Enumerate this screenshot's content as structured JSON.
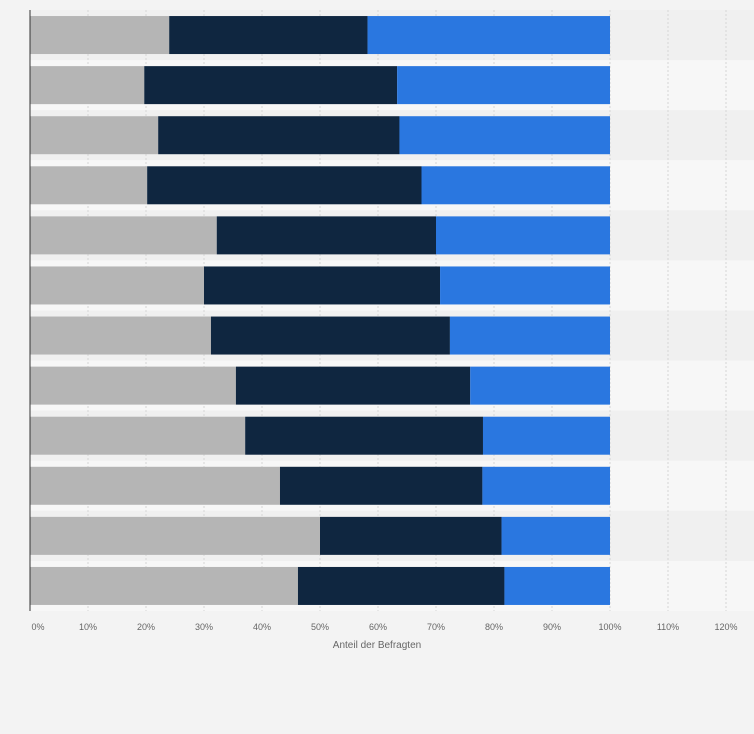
{
  "chart_data": {
    "type": "bar",
    "orientation": "horizontal",
    "stacked": true,
    "xlabel": "Anteil der Befragten",
    "xlim": [
      0,
      120
    ],
    "x_ticks": [
      "0%",
      "10%",
      "20%",
      "30%",
      "40%",
      "50%",
      "60%",
      "70%",
      "80%",
      "90%",
      "100%",
      "110%",
      "120%"
    ],
    "tick_values": [
      0,
      10,
      20,
      30,
      40,
      50,
      60,
      70,
      80,
      90,
      100,
      110,
      120
    ],
    "grid": true,
    "row_count": 12,
    "series": [
      {
        "color": "#b5b5b5",
        "values": [
          24,
          19.7,
          22.1,
          20.2,
          32.2,
          30,
          31.2,
          35.5,
          37.1,
          43.1,
          50,
          46.2
        ]
      },
      {
        "color": "#0f2640",
        "values": [
          34.2,
          43.6,
          41.6,
          47.3,
          37.8,
          40.7,
          41.2,
          40.4,
          41,
          34.9,
          31.3,
          35.6
        ]
      },
      {
        "color": "#2a77e0",
        "values": [
          41.8,
          36.7,
          36.3,
          32.5,
          30,
          29.3,
          27.6,
          24.1,
          21.9,
          22,
          18.7,
          18.2
        ]
      }
    ]
  }
}
